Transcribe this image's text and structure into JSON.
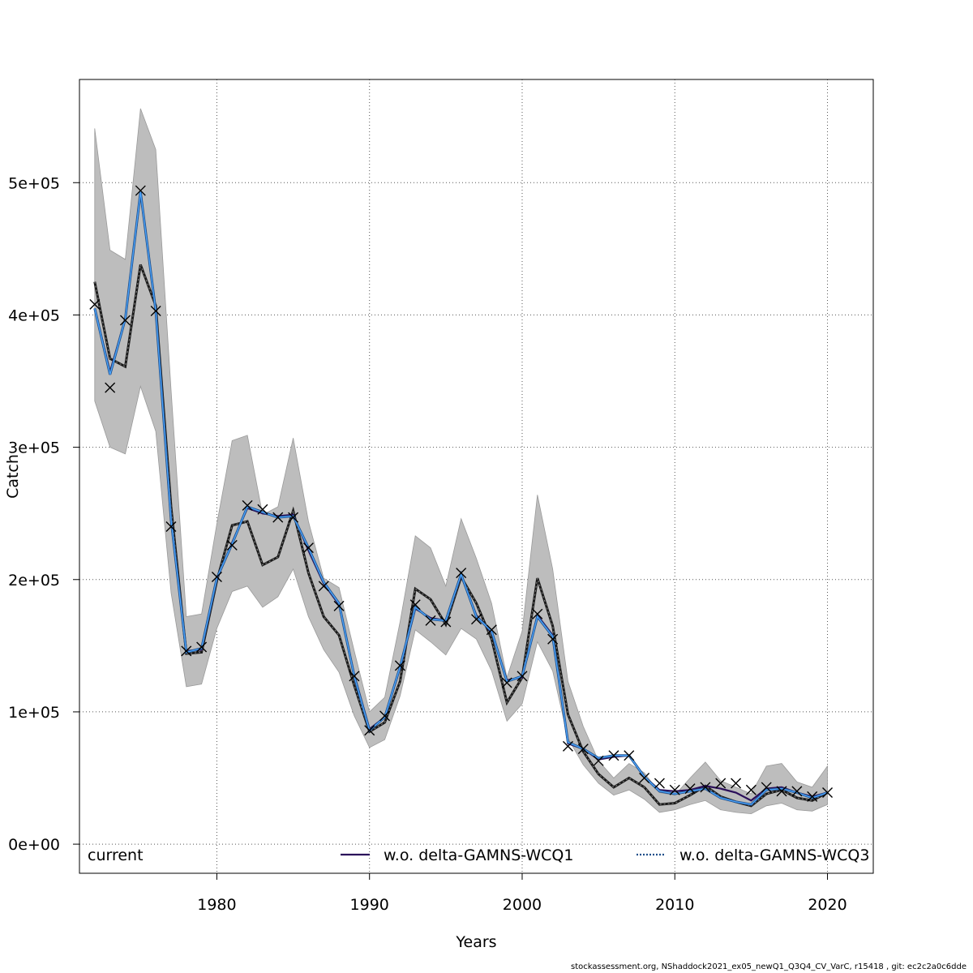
{
  "chart_data": {
    "type": "line",
    "xlabel": "Years",
    "ylabel": "Catch",
    "xlim": [
      1971.0,
      2023.0
    ],
    "ylim": [
      -22000,
      578000
    ],
    "x_ticks": [
      1980,
      1990,
      2000,
      2010,
      2020
    ],
    "y_ticks": [
      0,
      100000,
      200000,
      300000,
      400000,
      500000
    ],
    "y_tick_labels": [
      "0e+00",
      "1e+05",
      "2e+05",
      "3e+05",
      "4e+05",
      "5e+05"
    ],
    "grid": true,
    "legend": {
      "placement": "bottom",
      "entries": [
        {
          "label": "current",
          "color": "#1a1a1a",
          "style": "band"
        },
        {
          "label": "w.o. delta-GAMNS-WCQ1",
          "color": "#2b0f5a",
          "style": "solid"
        },
        {
          "label": "w.o. delta-GAMNS-WCQ3",
          "color": "#4da6ff",
          "style": "dotted"
        }
      ]
    },
    "years": [
      1972,
      1973,
      1974,
      1975,
      1976,
      1977,
      1978,
      1979,
      1980,
      1981,
      1982,
      1983,
      1984,
      1985,
      1986,
      1987,
      1988,
      1989,
      1990,
      1991,
      1992,
      1993,
      1994,
      1995,
      1996,
      1997,
      1998,
      1999,
      2000,
      2001,
      2002,
      2003,
      2004,
      2005,
      2006,
      2007,
      2008,
      2009,
      2010,
      2011,
      2012,
      2013,
      2014,
      2015,
      2016,
      2017,
      2018,
      2019,
      2020
    ],
    "observed": [
      408000,
      345000,
      396000,
      494000,
      403000,
      240000,
      146000,
      149000,
      202000,
      226000,
      256000,
      253000,
      247000,
      247000,
      224000,
      195000,
      180000,
      127000,
      86000,
      97000,
      135000,
      181000,
      169000,
      168000,
      205000,
      170000,
      162000,
      122000,
      127000,
      174000,
      155000,
      74000,
      72000,
      63000,
      67000,
      67000,
      50000,
      46000,
      41000,
      42000,
      43000,
      46000,
      46000,
      41000,
      43000,
      40000,
      40000,
      36000,
      39000
    ],
    "series": [
      {
        "name": "current",
        "color": "#1a1a1a",
        "values": [
          425000,
          367000,
          361000,
          438000,
          407000,
          255000,
          144000,
          145000,
          199000,
          241000,
          244000,
          211000,
          217000,
          252000,
          205000,
          172000,
          158000,
          120000,
          85000,
          92000,
          123000,
          193000,
          185000,
          166000,
          202000,
          182000,
          155000,
          107000,
          126000,
          201000,
          165000,
          98000,
          70000,
          53000,
          43000,
          50000,
          43000,
          30000,
          31000,
          37000,
          44000,
          36000,
          32000,
          29000,
          38000,
          41000,
          35000,
          33000,
          39000
        ]
      },
      {
        "name": "w.o. delta-GAMNS-WCQ1",
        "color": "#2b0f5a",
        "values": [
          405000,
          357000,
          397000,
          492000,
          404000,
          244000,
          146000,
          147000,
          200000,
          228000,
          254000,
          250000,
          248000,
          249000,
          222000,
          197000,
          181000,
          128000,
          87000,
          96000,
          133000,
          178000,
          171000,
          169000,
          203000,
          173000,
          160000,
          124000,
          126000,
          173000,
          158000,
          76000,
          72000,
          64000,
          66000,
          67000,
          51000,
          41000,
          40000,
          41000,
          44000,
          42000,
          39000,
          33000,
          42000,
          43000,
          39000,
          36000,
          39000
        ]
      },
      {
        "name": "w.o. delta-GAMNS-WCQ3",
        "color": "#4da6ff",
        "values": [
          405000,
          355000,
          397000,
          493000,
          403000,
          245000,
          145000,
          148000,
          201000,
          227000,
          255000,
          251000,
          247000,
          248000,
          224000,
          198000,
          182000,
          127000,
          86000,
          96000,
          134000,
          179000,
          170000,
          169000,
          204000,
          172000,
          161000,
          123000,
          127000,
          172000,
          157000,
          77000,
          72000,
          65000,
          67000,
          67000,
          51000,
          40000,
          38000,
          40000,
          42000,
          35000,
          32000,
          30000,
          41000,
          42000,
          39000,
          35000,
          39000
        ]
      }
    ],
    "ci_lower": [
      335000,
      300000,
      295000,
      346000,
      312000,
      190000,
      119000,
      121000,
      163000,
      191000,
      195000,
      179000,
      187000,
      208000,
      172000,
      147000,
      130000,
      97000,
      73000,
      79000,
      112000,
      162000,
      153000,
      143000,
      163000,
      155000,
      131000,
      93000,
      106000,
      153000,
      131000,
      80000,
      60000,
      46000,
      37000,
      41000,
      34000,
      24000,
      26000,
      30000,
      33000,
      26000,
      24000,
      23000,
      29000,
      31000,
      26000,
      25000,
      30000
    ],
    "ci_upper": [
      541000,
      449000,
      442000,
      556000,
      525000,
      343000,
      172000,
      174000,
      242000,
      305000,
      309000,
      249000,
      255000,
      307000,
      244000,
      201000,
      194000,
      146000,
      100000,
      111000,
      168000,
      233000,
      224000,
      195000,
      246000,
      216000,
      182000,
      126000,
      161000,
      264000,
      208000,
      123000,
      89000,
      63000,
      50000,
      61000,
      54000,
      39000,
      37000,
      50000,
      62000,
      48000,
      43000,
      38000,
      59000,
      61000,
      47000,
      43000,
      59000
    ]
  },
  "footer": "stockassessment.org, NShaddock2021_ex05_newQ1_Q3Q4_CV_VarC, r15418 , git: ec2c2a0c6dde"
}
